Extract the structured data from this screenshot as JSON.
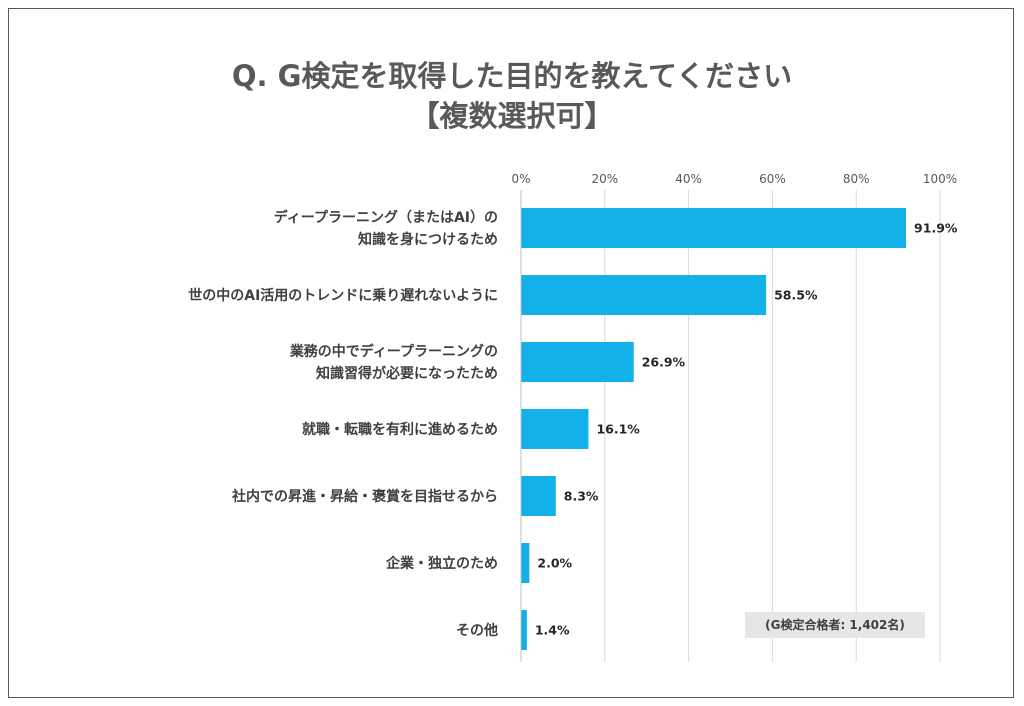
{
  "chart_data": {
    "type": "bar",
    "orientation": "horizontal",
    "title": "Q. G検定を取得した目的を教えてください",
    "subtitle": "【複数選択可】",
    "categories": [
      [
        "ディープラーニング（またはAI）の",
        "知識を身につけるため"
      ],
      [
        "世の中のAI活用のトレンドに乗り遅れないように"
      ],
      [
        "業務の中でディープラーニングの",
        "知識習得が必要になったため"
      ],
      [
        "就職・転職を有利に進めるため"
      ],
      [
        "社内での昇進・昇給・褒賞を目指せるから"
      ],
      [
        "企業・独立のため"
      ],
      [
        "その他"
      ]
    ],
    "values": [
      91.9,
      58.5,
      26.9,
      16.1,
      8.3,
      2.0,
      1.4
    ],
    "value_labels": [
      "91.9%",
      "58.5%",
      "26.9%",
      "16.1%",
      "8.3%",
      "2.0%",
      "1.4%"
    ],
    "xlim": [
      0,
      100
    ],
    "ticks": [
      0,
      20,
      40,
      60,
      80,
      100
    ],
    "tick_labels": [
      "0%",
      "20%",
      "40%",
      "60%",
      "80%",
      "100%"
    ],
    "grid": true,
    "bar_color": "#12b2e8",
    "note": "(G検定合格者: 1,402名)"
  }
}
